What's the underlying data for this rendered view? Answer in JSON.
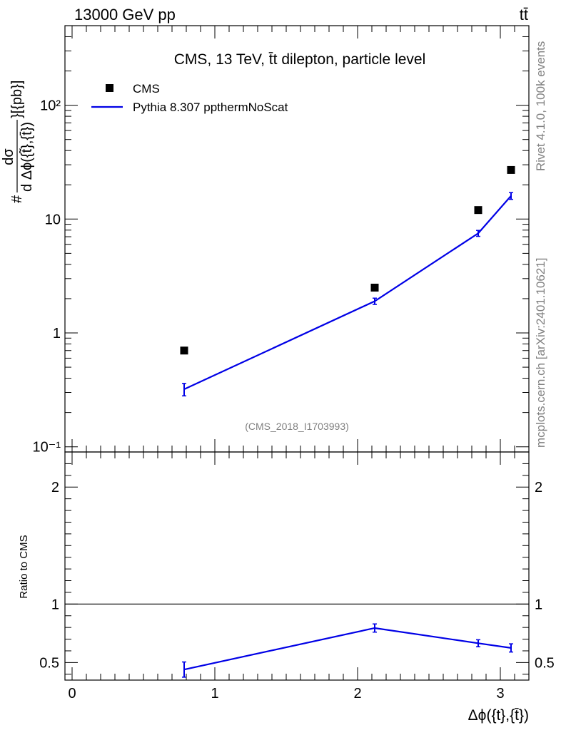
{
  "header": {
    "energy_label": "13000 GeV pp",
    "process_label": "tt̄"
  },
  "side_labels": {
    "rivet": "Rivet 4.1.0,  100k events",
    "mcplots": "mcplots.cern.ch [arXiv:2401.10621]"
  },
  "chart_data": [
    {
      "type": "scatter",
      "title": "CMS, 13 TeV, t̄t dilepton, particle level",
      "watermark": "(CMS_2018_I1703993)",
      "ylabel_prefix": "#",
      "ylabel_num": "dσ",
      "ylabel_den": "d Δϕ({t̃},{t̄})",
      "ylabel_unit": "}[{pb}]",
      "yscale": "log",
      "xlim": [
        -0.05,
        3.2
      ],
      "ylim": [
        0.09,
        500
      ],
      "ytick_labels": [
        "10⁻¹",
        "1",
        "10",
        "10²"
      ],
      "ytick_values": [
        0.1,
        1,
        10,
        100
      ],
      "legend_position": "top-left",
      "series": [
        {
          "name": "CMS",
          "kind": "markers",
          "color": "#000000",
          "x": [
            0.785,
            2.12,
            2.845,
            3.075
          ],
          "y": [
            0.7,
            2.5,
            12.0,
            27.0
          ]
        },
        {
          "name": "Pythia 8.307 ppthermNoScat",
          "kind": "line",
          "color": "#0000e6",
          "x": [
            0.785,
            2.12,
            2.845,
            3.075
          ],
          "y": [
            0.32,
            1.9,
            7.5,
            16.0
          ],
          "err_up": [
            0.04,
            0.12,
            0.45,
            1.1
          ],
          "err_down": [
            0.04,
            0.12,
            0.45,
            1.1
          ]
        }
      ]
    },
    {
      "type": "line",
      "ylabel": "Ratio to CMS",
      "xlabel": "Δϕ({t},{t̄})",
      "xlim": [
        -0.05,
        3.2
      ],
      "ylim": [
        0.35,
        2.3
      ],
      "xtick_labels": [
        "0",
        "1",
        "2",
        "3"
      ],
      "xtick_values": [
        0,
        1,
        2,
        3
      ],
      "ytick_labels": [
        "0.5",
        "1",
        "2"
      ],
      "ytick_values": [
        0.5,
        1,
        2
      ],
      "reference_line": 1,
      "series": [
        {
          "name": "Pythia 8.307 ppthermNoScat",
          "color": "#0000e6",
          "x": [
            0.785,
            2.12,
            2.845,
            3.075
          ],
          "y": [
            0.44,
            0.795,
            0.665,
            0.625
          ],
          "err": [
            0.065,
            0.035,
            0.03,
            0.035
          ]
        }
      ]
    }
  ]
}
